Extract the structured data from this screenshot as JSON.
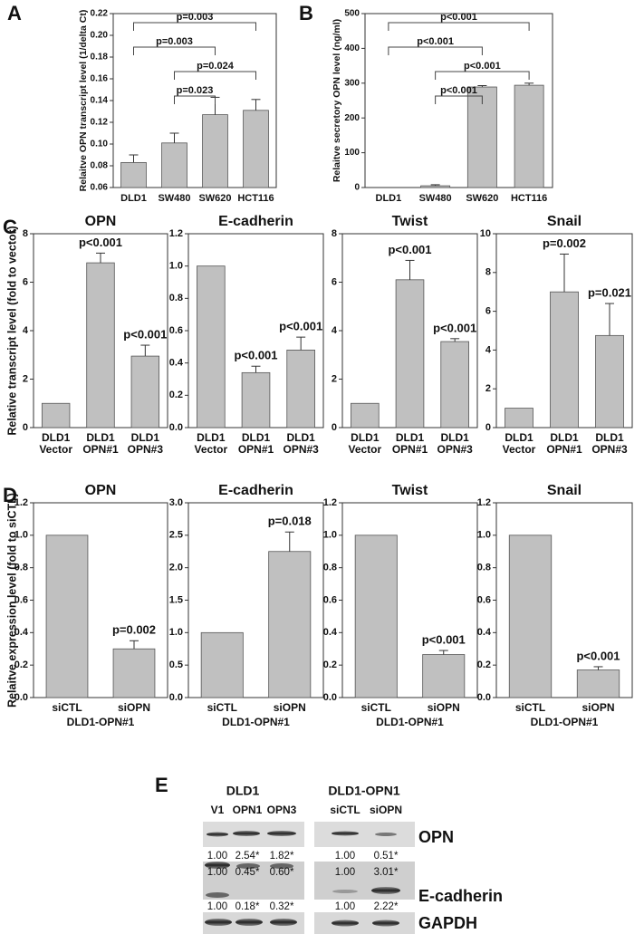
{
  "chart_data": [
    {
      "type": "bar",
      "panel": "A",
      "ylabel": "Relaitve OPN transcript level (1/delta Ct)",
      "categories": [
        "DLD1",
        "SW480",
        "SW620",
        "HCT116"
      ],
      "values": [
        0.083,
        0.101,
        0.127,
        0.131
      ],
      "errors": [
        0.007,
        0.009,
        0.016,
        0.01
      ],
      "color": "#c0c0c0",
      "ylim": [
        0.06,
        0.22
      ],
      "yticks": [
        0.06,
        0.08,
        {
          "value": 0.1,
          "label": "0.10"
        },
        0.12,
        0.14,
        0.16,
        0.18,
        {
          "value": 0.2,
          "label": "0.20"
        },
        0.22
      ],
      "brackets": [
        {
          "from": 0,
          "to": 3,
          "label": "p=0.003"
        },
        {
          "from": 0,
          "to": 2,
          "label": "p=0.003"
        },
        {
          "from": 1,
          "to": 3,
          "label": "p=0.024"
        },
        {
          "from": 1,
          "to": 2,
          "label": "p=0.023"
        }
      ]
    },
    {
      "type": "bar",
      "panel": "B",
      "ylabel": "Relaitve secretory OPN level (ng/ml)",
      "categories": [
        "DLD1",
        "SW480",
        "SW620",
        "HCT116"
      ],
      "values": [
        0,
        5,
        289,
        294
      ],
      "errors": [
        0,
        3,
        4,
        6
      ],
      "color": "#c0c0c0",
      "ylim": [
        0,
        500
      ],
      "yticks": [
        0,
        100,
        200,
        300,
        400,
        500
      ],
      "brackets": [
        {
          "from": 0,
          "to": 3,
          "label": "p<0.001"
        },
        {
          "from": 0,
          "to": 2,
          "label": "p<0.001"
        },
        {
          "from": 1,
          "to": 3,
          "label": "p<0.001"
        },
        {
          "from": 1,
          "to": 2,
          "label": "p<0.001"
        }
      ]
    },
    {
      "type": "bar",
      "panel": "C",
      "title": "OPN",
      "ylabel": "Relative transcript level (fold to vector)",
      "categories": [
        "DLD1 Vector",
        "DLD1 OPN#1",
        "DLD1 OPN#3"
      ],
      "values": [
        1,
        6.8,
        2.95
      ],
      "errors": [
        null,
        0.4,
        0.45
      ],
      "pvalues": [
        null,
        "p<0.001",
        "p<0.001"
      ],
      "color": "#c0c0c0",
      "ylim": [
        0,
        8
      ],
      "yticks": [
        0,
        2,
        4,
        6,
        8
      ]
    },
    {
      "type": "bar",
      "title": "E-cadherin",
      "categories": [
        "DLD1 Vector",
        "DLD1 OPN#1",
        "DLD1 OPN#3"
      ],
      "values": [
        1,
        0.34,
        0.48
      ],
      "errors": [
        null,
        0.04,
        0.08
      ],
      "pvalues": [
        null,
        "p<0.001",
        "p<0.001"
      ],
      "color": "#c0c0c0",
      "ylim": [
        0,
        1.2
      ],
      "yticks": [
        {
          "value": 0,
          "label": "0.0"
        },
        0.2,
        0.4,
        0.6,
        0.8,
        {
          "value": 1,
          "label": "1.0"
        },
        1.2
      ]
    },
    {
      "type": "bar",
      "title": "Twist",
      "categories": [
        "DLD1 Vector",
        "DLD1 OPN#1",
        "DLD1 OPN#3"
      ],
      "values": [
        1,
        6.1,
        3.55
      ],
      "errors": [
        null,
        0.8,
        0.12
      ],
      "pvalues": [
        null,
        "p<0.001",
        "p<0.001"
      ],
      "color": "#c0c0c0",
      "ylim": [
        0,
        8
      ],
      "yticks": [
        0,
        2,
        4,
        6,
        8
      ]
    },
    {
      "type": "bar",
      "title": "Snail",
      "categories": [
        "DLD1 Vector",
        "DLD1 OPN#1",
        "DLD1 OPN#3"
      ],
      "values": [
        1,
        7,
        4.75
      ],
      "errors": [
        null,
        1.95,
        1.65
      ],
      "pvalues": [
        null,
        "p=0.002",
        "p=0.021"
      ],
      "color": "#c0c0c0",
      "ylim": [
        0,
        10
      ],
      "yticks": [
        0,
        2,
        4,
        6,
        8,
        10
      ]
    },
    {
      "type": "bar",
      "panel": "D",
      "title": "OPN",
      "ylabel": "Relaitve expression level (fold to siCTL)",
      "xlabel": "DLD1-OPN#1",
      "categories": [
        "siCTL",
        "siOPN"
      ],
      "values": [
        1,
        0.3
      ],
      "errors": [
        null,
        0.05
      ],
      "pvalues": [
        null,
        "p=0.002"
      ],
      "color": "#c0c0c0",
      "ylim": [
        0,
        1.2
      ],
      "yticks": [
        {
          "value": 0,
          "label": "0.0"
        },
        0.2,
        0.4,
        0.6,
        0.8,
        {
          "value": 1,
          "label": "1.0"
        },
        1.2
      ]
    },
    {
      "type": "bar",
      "title": "E-cadherin",
      "xlabel": "DLD1-OPN#1",
      "categories": [
        "siCTL",
        "siOPN"
      ],
      "values": [
        1,
        2.25
      ],
      "errors": [
        null,
        0.3
      ],
      "pvalues": [
        null,
        "p=0.018"
      ],
      "color": "#c0c0c0",
      "ylim": [
        0,
        3
      ],
      "yticks": [
        {
          "value": 0,
          "label": "0.0"
        },
        0.5,
        {
          "value": 1,
          "label": "1.0"
        },
        1.5,
        {
          "value": 2,
          "label": "2.0"
        },
        2.5,
        {
          "value": 3,
          "label": "3.0"
        }
      ]
    },
    {
      "type": "bar",
      "title": "Twist",
      "xlabel": "DLD1-OPN#1",
      "categories": [
        "siCTL",
        "siOPN"
      ],
      "values": [
        1,
        0.265
      ],
      "errors": [
        null,
        0.025
      ],
      "pvalues": [
        null,
        "p<0.001"
      ],
      "color": "#c0c0c0",
      "ylim": [
        0,
        1.2
      ],
      "yticks": [
        {
          "value": 0,
          "label": "0.0"
        },
        0.2,
        0.4,
        0.6,
        0.8,
        {
          "value": 1,
          "label": "1.0"
        },
        1.2
      ]
    },
    {
      "type": "bar",
      "title": "Snail",
      "xlabel": "DLD1-OPN#1",
      "categories": [
        "siCTL",
        "siOPN"
      ],
      "values": [
        1,
        0.17
      ],
      "errors": [
        null,
        0.02
      ],
      "pvalues": [
        null,
        "p<0.001"
      ],
      "color": "#c0c0c0",
      "ylim": [
        0,
        1.2
      ],
      "yticks": [
        {
          "value": 0,
          "label": "0.0"
        },
        0.2,
        0.4,
        0.6,
        0.8,
        {
          "value": 1,
          "label": "1.0"
        },
        1.2
      ]
    }
  ],
  "blot": {
    "panel": "E",
    "left_title": "DLD1",
    "right_title": "DLD1-OPN1",
    "left_lanes": [
      "V1",
      "OPN1",
      "OPN3"
    ],
    "right_lanes": [
      "siCTL",
      "siOPN"
    ],
    "rows": [
      {
        "name": "OPN",
        "left": [
          [
            "1.00",
            "2.54*",
            "1.82*"
          ]
        ],
        "right": [
          [
            "1.00",
            "0.51*"
          ]
        ]
      },
      {
        "name": "E-cadherin",
        "left": [
          [
            "1.00",
            "0.45*",
            "0.60*"
          ],
          [
            "1.00",
            "0.18*",
            "0.32*"
          ]
        ],
        "right": [
          [
            "1.00",
            "3.01*"
          ],
          [
            "1.00",
            "2.22*"
          ]
        ]
      },
      {
        "name": "GAPDH",
        "left": [],
        "right": []
      }
    ]
  }
}
